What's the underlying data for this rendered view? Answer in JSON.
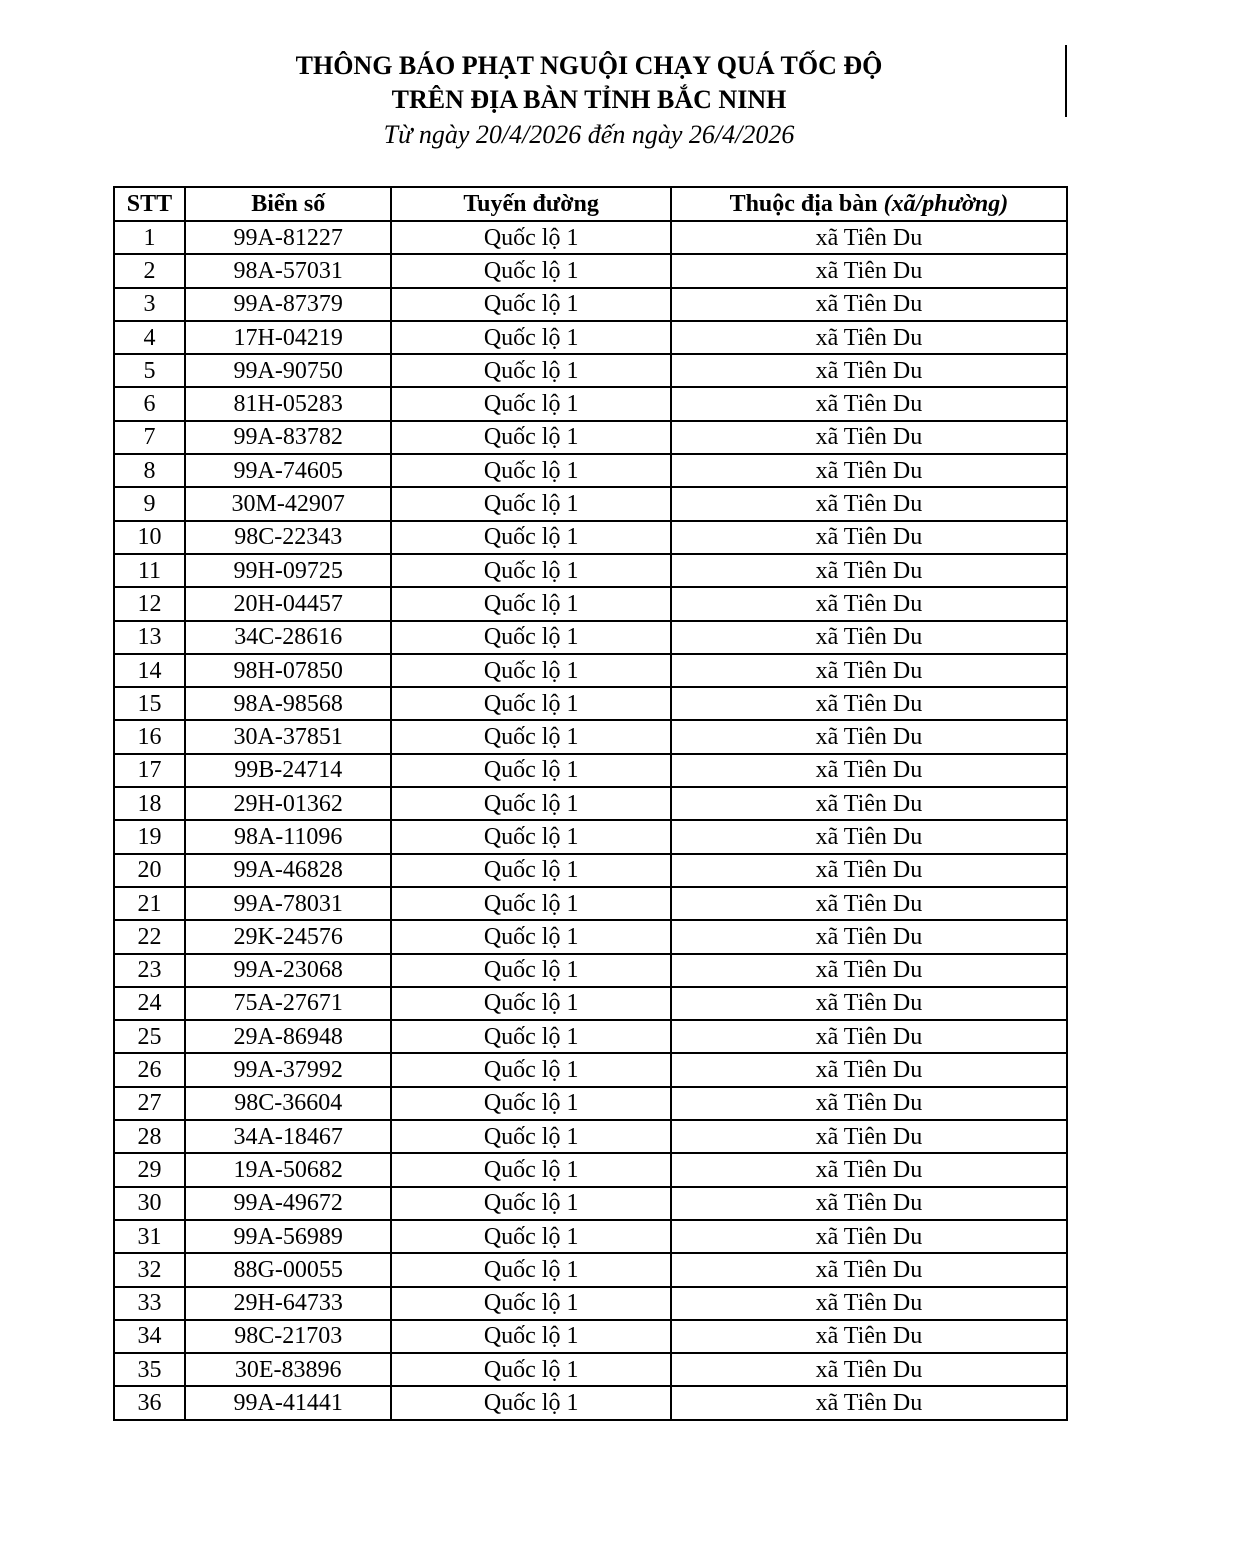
{
  "title_line1": "THÔNG BÁO PHẠT NGUỘI CHẠY QUÁ TỐC ĐỘ",
  "title_line2": "TRÊN ĐỊA BÀN TỈNH BẮC NINH",
  "subtitle": "Từ ngày 20/4/2026 đến ngày 26/4/2026",
  "table": {
    "headers": {
      "stt": "STT",
      "plate": "Biển số",
      "route": "Tuyến đường",
      "area": "Thuộc địa bàn",
      "area_italic": "(xã/phường)"
    },
    "rows": [
      {
        "stt": "1",
        "plate": "99A-81227",
        "route": "Quốc lộ 1",
        "area": "xã Tiên Du"
      },
      {
        "stt": "2",
        "plate": "98A-57031",
        "route": "Quốc lộ 1",
        "area": "xã Tiên Du"
      },
      {
        "stt": "3",
        "plate": "99A-87379",
        "route": "Quốc lộ 1",
        "area": "xã Tiên Du"
      },
      {
        "stt": "4",
        "plate": "17H-04219",
        "route": "Quốc lộ 1",
        "area": "xã Tiên Du"
      },
      {
        "stt": "5",
        "plate": "99A-90750",
        "route": "Quốc lộ 1",
        "area": "xã Tiên Du"
      },
      {
        "stt": "6",
        "plate": "81H-05283",
        "route": "Quốc lộ 1",
        "area": "xã Tiên Du"
      },
      {
        "stt": "7",
        "plate": "99A-83782",
        "route": "Quốc lộ 1",
        "area": "xã Tiên Du"
      },
      {
        "stt": "8",
        "plate": "99A-74605",
        "route": "Quốc lộ 1",
        "area": "xã Tiên Du"
      },
      {
        "stt": "9",
        "plate": "30M-42907",
        "route": "Quốc lộ 1",
        "area": "xã Tiên Du"
      },
      {
        "stt": "10",
        "plate": "98C-22343",
        "route": "Quốc lộ 1",
        "area": "xã Tiên Du"
      },
      {
        "stt": "11",
        "plate": "99H-09725",
        "route": "Quốc lộ 1",
        "area": "xã Tiên Du"
      },
      {
        "stt": "12",
        "plate": "20H-04457",
        "route": "Quốc lộ 1",
        "area": "xã Tiên Du"
      },
      {
        "stt": "13",
        "plate": "34C-28616",
        "route": "Quốc lộ 1",
        "area": "xã Tiên Du"
      },
      {
        "stt": "14",
        "plate": "98H-07850",
        "route": "Quốc lộ 1",
        "area": "xã Tiên Du"
      },
      {
        "stt": "15",
        "plate": "98A-98568",
        "route": "Quốc lộ 1",
        "area": "xã Tiên Du"
      },
      {
        "stt": "16",
        "plate": "30A-37851",
        "route": "Quốc lộ 1",
        "area": "xã Tiên Du"
      },
      {
        "stt": "17",
        "plate": "99B-24714",
        "route": "Quốc lộ 1",
        "area": "xã Tiên Du"
      },
      {
        "stt": "18",
        "plate": "29H-01362",
        "route": "Quốc lộ 1",
        "area": "xã Tiên Du"
      },
      {
        "stt": "19",
        "plate": "98A-11096",
        "route": "Quốc lộ 1",
        "area": "xã Tiên Du"
      },
      {
        "stt": "20",
        "plate": "99A-46828",
        "route": "Quốc lộ 1",
        "area": "xã Tiên Du"
      },
      {
        "stt": "21",
        "plate": "99A-78031",
        "route": "Quốc lộ 1",
        "area": "xã Tiên Du"
      },
      {
        "stt": "22",
        "plate": "29K-24576",
        "route": "Quốc lộ 1",
        "area": "xã Tiên Du"
      },
      {
        "stt": "23",
        "plate": "99A-23068",
        "route": "Quốc lộ 1",
        "area": "xã Tiên Du"
      },
      {
        "stt": "24",
        "plate": "75A-27671",
        "route": "Quốc lộ 1",
        "area": "xã Tiên Du"
      },
      {
        "stt": "25",
        "plate": "29A-86948",
        "route": "Quốc lộ 1",
        "area": "xã Tiên Du"
      },
      {
        "stt": "26",
        "plate": "99A-37992",
        "route": "Quốc lộ 1",
        "area": "xã Tiên Du"
      },
      {
        "stt": "27",
        "plate": "98C-36604",
        "route": "Quốc lộ 1",
        "area": "xã Tiên Du"
      },
      {
        "stt": "28",
        "plate": "34A-18467",
        "route": "Quốc lộ 1",
        "area": "xã Tiên Du"
      },
      {
        "stt": "29",
        "plate": "19A-50682",
        "route": "Quốc lộ 1",
        "area": "xã Tiên Du"
      },
      {
        "stt": "30",
        "plate": "99A-49672",
        "route": "Quốc lộ 1",
        "area": "xã Tiên Du"
      },
      {
        "stt": "31",
        "plate": "99A-56989",
        "route": "Quốc lộ 1",
        "area": "xã Tiên Du"
      },
      {
        "stt": "32",
        "plate": "88G-00055",
        "route": "Quốc lộ 1",
        "area": "xã Tiên Du"
      },
      {
        "stt": "33",
        "plate": "29H-64733",
        "route": "Quốc lộ 1",
        "area": "xã Tiên Du"
      },
      {
        "stt": "34",
        "plate": "98C-21703",
        "route": "Quốc lộ 1",
        "area": "xã Tiên Du"
      },
      {
        "stt": "35",
        "plate": "30E-83896",
        "route": "Quốc lộ 1",
        "area": "xã Tiên Du"
      },
      {
        "stt": "36",
        "plate": "99A-41441",
        "route": "Quốc lộ 1",
        "area": "xã Tiên Du"
      }
    ]
  }
}
